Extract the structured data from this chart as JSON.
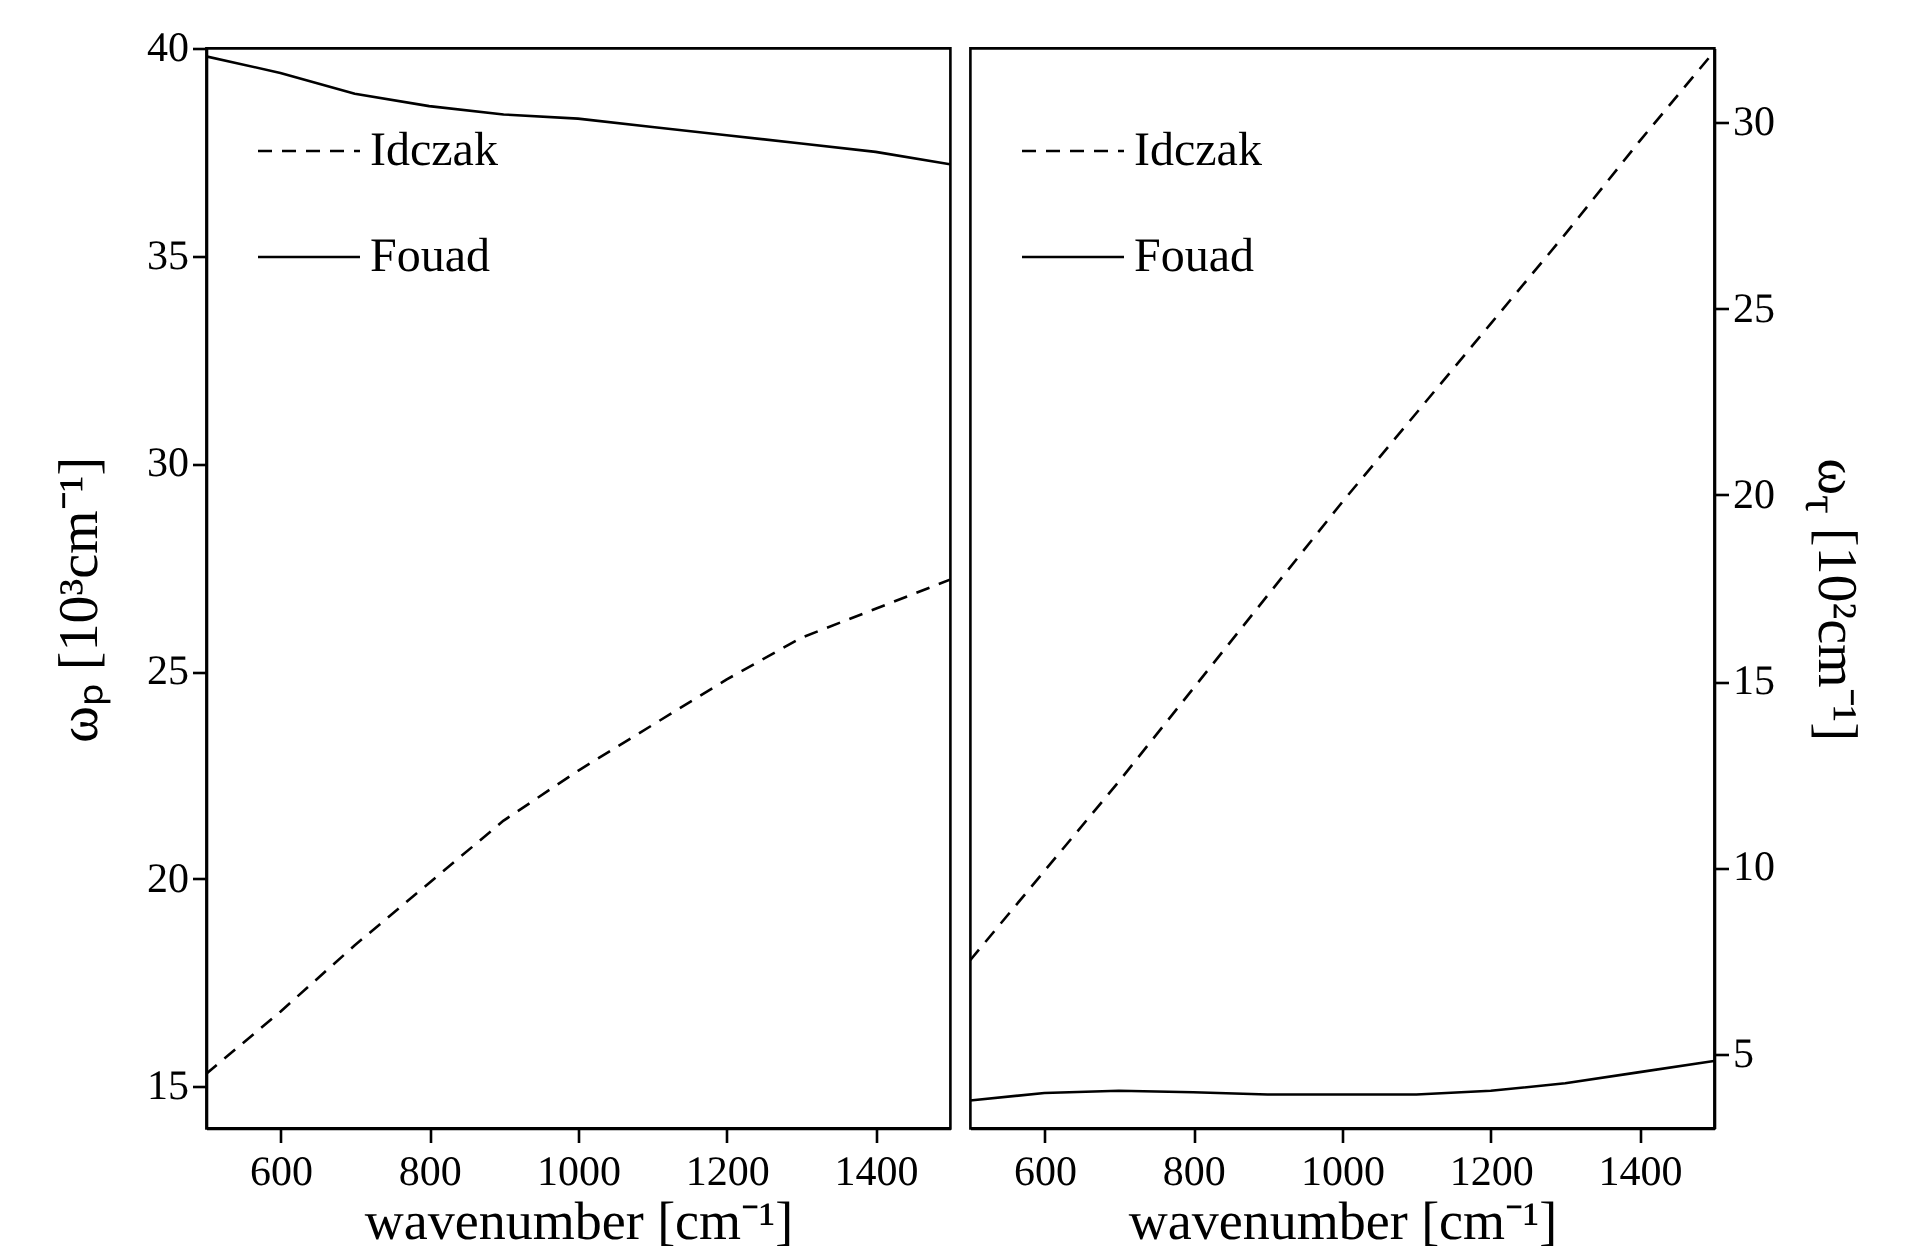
{
  "chart_data": [
    {
      "type": "line",
      "xlabel": "wavenumber [cm⁻¹]",
      "ylabel": "ωₚ [10³cm⁻¹]",
      "x": [
        500,
        600,
        700,
        800,
        900,
        1000,
        1100,
        1200,
        1300,
        1400,
        1500
      ],
      "series": [
        {
          "name": "Idczak",
          "color": "#000000",
          "line_style": "dashed",
          "values": [
            15.3,
            16.8,
            18.4,
            19.9,
            21.4,
            22.6,
            23.7,
            24.8,
            25.8,
            26.5,
            27.2
          ]
        },
        {
          "name": "Fouad",
          "color": "#000000",
          "line_style": "solid",
          "values": [
            39.8,
            39.4,
            38.9,
            38.6,
            38.4,
            38.3,
            38.1,
            37.9,
            37.7,
            37.5,
            37.2
          ]
        }
      ],
      "xlim": [
        500,
        1500
      ],
      "xticks": [
        600,
        800,
        1000,
        1200,
        1400
      ],
      "ylim": [
        14,
        40
      ],
      "yticks": [
        15,
        20,
        25,
        30,
        35,
        40
      ],
      "legend": "top left",
      "grid": false,
      "marker": "none"
    },
    {
      "type": "line",
      "xlabel": "wavenumber [cm⁻¹]",
      "y2label": "ω$_{τ}$ [10²cm⁻¹]",
      "x": [
        500,
        600,
        700,
        800,
        900,
        1000,
        1100,
        1200,
        1300,
        1400,
        1500
      ],
      "series": [
        {
          "name": "Idczak",
          "color": "#000000",
          "line_style": "dashed",
          "axis": "y2",
          "values": [
            7.5,
            9.9,
            12.3,
            14.8,
            17.3,
            19.8,
            22.2,
            24.6,
            27.0,
            29.5,
            31.9
          ]
        },
        {
          "name": "Fouad",
          "color": "#000000",
          "line_style": "solid",
          "axis": "y2",
          "values": [
            3.74,
            3.94,
            4.0,
            3.96,
            3.9,
            3.9,
            3.9,
            4.0,
            4.2,
            4.5,
            4.8
          ]
        }
      ],
      "xlim": [
        500,
        1500
      ],
      "xticks": [
        600,
        800,
        1000,
        1200,
        1400
      ],
      "y2lim": [
        3,
        32
      ],
      "y2ticks": [
        5,
        10,
        15,
        20,
        25,
        30
      ],
      "legend": "top left",
      "grid": false,
      "marker": "none"
    }
  ]
}
